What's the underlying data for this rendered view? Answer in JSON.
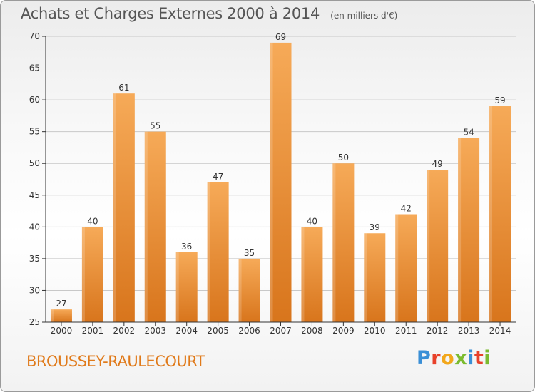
{
  "header": {
    "title": "Achats et Charges Externes 2000 à 2014",
    "unit": "(en milliers d'€)"
  },
  "footer": {
    "commune": "BROUSSEY-RAULECOURT",
    "logo_letters": [
      "P",
      "r",
      "o",
      "x",
      "i",
      "t",
      "i"
    ],
    "logo_colors": [
      "#3a8fd6",
      "#e8412a",
      "#f2a71b",
      "#7bbb2f",
      "#3a8fd6",
      "#e8412a",
      "#7bbb2f"
    ]
  },
  "colors": {
    "bar_light": "#f6aa58",
    "bar_dark": "#d8751c",
    "axis": "#333333",
    "grid": "#c8c8c8",
    "text": "#333333"
  },
  "chart_data": {
    "type": "bar",
    "categories": [
      "2000",
      "2001",
      "2002",
      "2003",
      "2004",
      "2005",
      "2006",
      "2007",
      "2008",
      "2009",
      "2010",
      "2011",
      "2012",
      "2013",
      "2014"
    ],
    "values": [
      27,
      40,
      61,
      55,
      36,
      47,
      35,
      69,
      40,
      50,
      39,
      42,
      49,
      54,
      59
    ],
    "data_labels": [
      "27",
      "40",
      "61",
      "55",
      "36",
      "47",
      "35",
      "69",
      "40",
      "50",
      "39",
      "42",
      "49",
      "54",
      "59"
    ],
    "title": "Achats et Charges Externes 2000 à 2014",
    "xlabel": "",
    "ylabel": "",
    "ylim": [
      25,
      70
    ],
    "yticks": [
      25,
      30,
      35,
      40,
      45,
      50,
      55,
      60,
      65,
      70
    ],
    "ytick_labels": [
      "25",
      "30",
      "35",
      "40",
      "45",
      "50",
      "55",
      "60",
      "65",
      "70"
    ],
    "grid": true
  }
}
